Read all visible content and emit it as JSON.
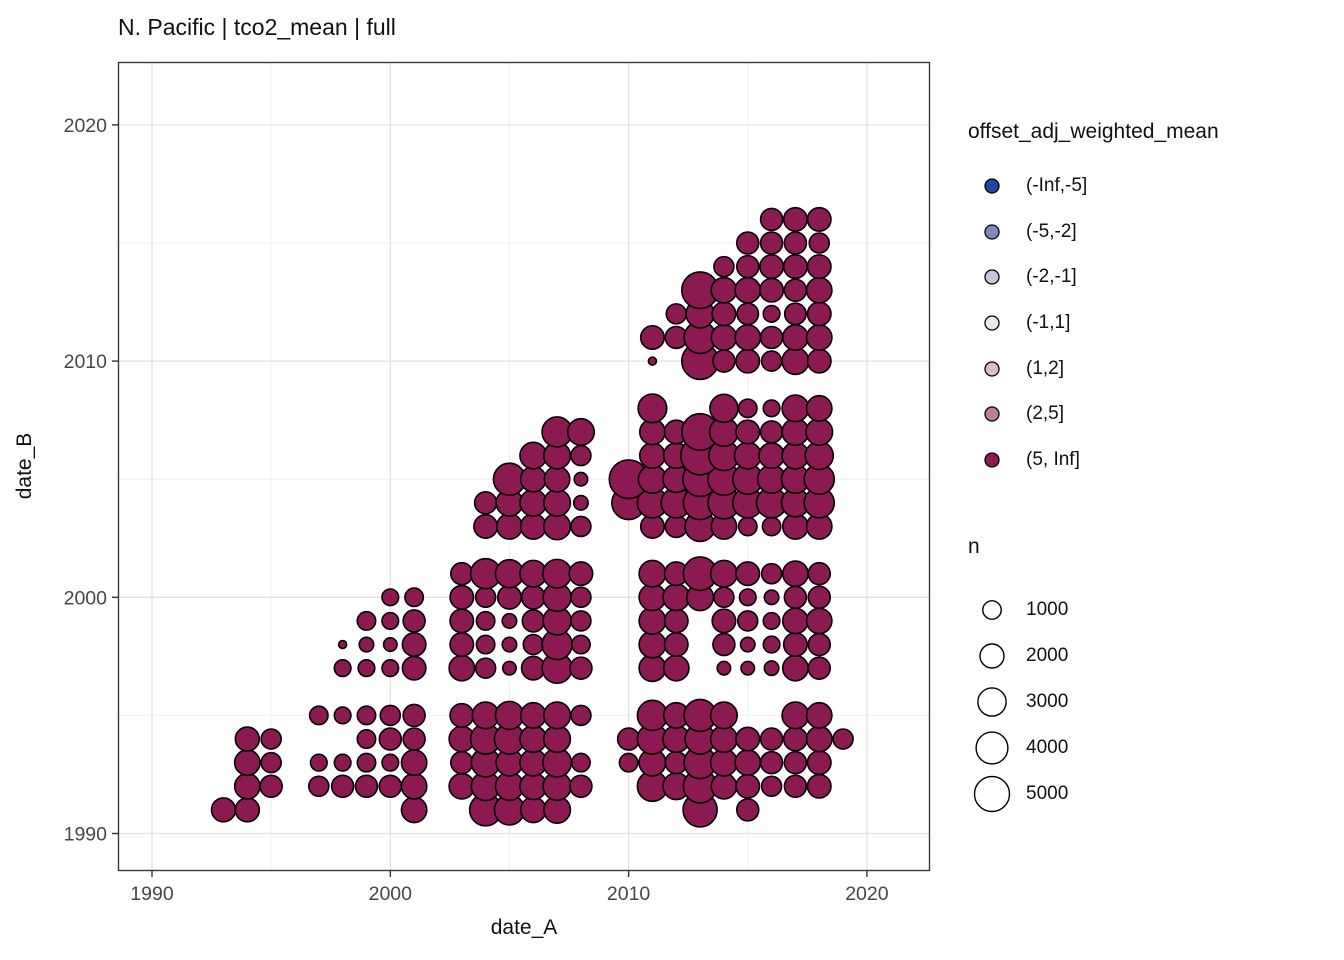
{
  "chart_data": {
    "type": "scatter",
    "title": "N. Pacific | tco2_mean | full",
    "xlabel": "date_A",
    "ylabel": "date_B",
    "x_ticks": [
      1990,
      2000,
      2010,
      2020
    ],
    "y_ticks": [
      1990,
      2000,
      2010,
      2020
    ],
    "x_minor_gridlines": [
      1995,
      2005,
      2015
    ],
    "y_minor_gridlines": [
      1995,
      2005,
      2015
    ],
    "xlim": [
      1988.5,
      2022.8
    ],
    "ylim": [
      1988.4,
      2022.9
    ],
    "grid": "major and minor, light gray on white, dark panel border",
    "point_style": {
      "fill_category": "(5, Inf]",
      "fill": "#8c1a52",
      "stroke": "#000000"
    },
    "color_legend": {
      "title": "offset_adj_weighted_mean",
      "entries": [
        {
          "label": "(-Inf,-5]",
          "color": "#1e4a9c"
        },
        {
          "label": "(-5,-2]",
          "color": "#8289c1"
        },
        {
          "label": "(-2,-1]",
          "color": "#c3c6de"
        },
        {
          "label": "(-1,1]",
          "color": "#edebf0"
        },
        {
          "label": "(1,2]",
          "color": "#dcbeca"
        },
        {
          "label": "(2,5]",
          "color": "#c07e95"
        },
        {
          "label": "(5, Inf]",
          "color": "#8c1a52"
        }
      ]
    },
    "size_legend": {
      "title": "n",
      "entries": [
        {
          "label": "1000",
          "n": 1000
        },
        {
          "label": "2000",
          "n": 2000
        },
        {
          "label": "3000",
          "n": 3000
        },
        {
          "label": "4000",
          "n": 4000
        },
        {
          "label": "5000",
          "n": 5000
        }
      ]
    },
    "points_format": [
      "date_A",
      "date_B",
      "n"
    ],
    "points": [
      [
        1993,
        1991,
        2000
      ],
      [
        1994,
        1991,
        2000
      ],
      [
        2001,
        1991,
        2300
      ],
      [
        2004,
        1991,
        4050
      ],
      [
        2005,
        1991,
        3500
      ],
      [
        2006,
        1991,
        2300
      ],
      [
        2007,
        1991,
        2600
      ],
      [
        2013,
        1991,
        4700
      ],
      [
        2015,
        1991,
        1600
      ],
      [
        1994,
        1992,
        2300
      ],
      [
        1995,
        1992,
        1600
      ],
      [
        1997,
        1992,
        1250
      ],
      [
        1998,
        1992,
        1600
      ],
      [
        1999,
        1992,
        1600
      ],
      [
        2000,
        1992,
        1600
      ],
      [
        2001,
        1992,
        2300
      ],
      [
        2003,
        1992,
        2300
      ],
      [
        2004,
        1992,
        3100
      ],
      [
        2005,
        1992,
        2950
      ],
      [
        2006,
        1992,
        2600
      ],
      [
        2007,
        1992,
        2950
      ],
      [
        2008,
        1992,
        1600
      ],
      [
        2011,
        1992,
        3500
      ],
      [
        2012,
        1992,
        2600
      ],
      [
        2013,
        1992,
        4500
      ],
      [
        2014,
        1992,
        2300
      ],
      [
        2015,
        1992,
        1900
      ],
      [
        2016,
        1992,
        1250
      ],
      [
        2017,
        1992,
        1600
      ],
      [
        2018,
        1992,
        1900
      ],
      [
        1994,
        1993,
        2300
      ],
      [
        1995,
        1993,
        1250
      ],
      [
        1997,
        1993,
        750
      ],
      [
        1998,
        1993,
        750
      ],
      [
        1999,
        1993,
        1000
      ],
      [
        2000,
        1993,
        750
      ],
      [
        2001,
        1993,
        2300
      ],
      [
        2003,
        1993,
        1600
      ],
      [
        2004,
        1993,
        3100
      ],
      [
        2005,
        1993,
        2600
      ],
      [
        2006,
        1993,
        2600
      ],
      [
        2007,
        1993,
        3100
      ],
      [
        2008,
        1993,
        1000
      ],
      [
        2010,
        1993,
        1000
      ],
      [
        2011,
        1993,
        2600
      ],
      [
        2012,
        1993,
        1600
      ],
      [
        2013,
        1993,
        4050
      ],
      [
        2014,
        1993,
        2600
      ],
      [
        2015,
        1993,
        2300
      ],
      [
        2016,
        1993,
        1600
      ],
      [
        2017,
        1993,
        1600
      ],
      [
        2018,
        1993,
        1900
      ],
      [
        1994,
        1994,
        2000
      ],
      [
        1995,
        1994,
        1250
      ],
      [
        1999,
        1994,
        1000
      ],
      [
        2000,
        1994,
        1600
      ],
      [
        2001,
        1994,
        1600
      ],
      [
        2003,
        1994,
        2300
      ],
      [
        2004,
        1994,
        3500
      ],
      [
        2005,
        1994,
        3500
      ],
      [
        2006,
        1994,
        2600
      ],
      [
        2007,
        1994,
        2600
      ],
      [
        2010,
        1994,
        1600
      ],
      [
        2011,
        1994,
        3500
      ],
      [
        2012,
        1994,
        2600
      ],
      [
        2013,
        1994,
        3500
      ],
      [
        2014,
        1994,
        2600
      ],
      [
        2015,
        1994,
        1900
      ],
      [
        2016,
        1994,
        1600
      ],
      [
        2017,
        1994,
        1900
      ],
      [
        2018,
        1994,
        2300
      ],
      [
        2019,
        1994,
        1250
      ],
      [
        1997,
        1995,
        1000
      ],
      [
        1998,
        1995,
        750
      ],
      [
        1999,
        1995,
        1000
      ],
      [
        2000,
        1995,
        1250
      ],
      [
        2001,
        1995,
        1600
      ],
      [
        2003,
        1995,
        1900
      ],
      [
        2004,
        1995,
        2600
      ],
      [
        2005,
        1995,
        2950
      ],
      [
        2006,
        1995,
        2300
      ],
      [
        2007,
        1995,
        2600
      ],
      [
        2008,
        1995,
        1250
      ],
      [
        2011,
        1995,
        3500
      ],
      [
        2012,
        1995,
        2300
      ],
      [
        2013,
        1995,
        4050
      ],
      [
        2014,
        1995,
        2600
      ],
      [
        2017,
        1995,
        2600
      ],
      [
        2018,
        1995,
        2300
      ],
      [
        1998,
        1997,
        750
      ],
      [
        1999,
        1997,
        750
      ],
      [
        2000,
        1997,
        750
      ],
      [
        2001,
        1997,
        1900
      ],
      [
        2003,
        1997,
        2300
      ],
      [
        2004,
        1997,
        1250
      ],
      [
        2005,
        1997,
        400
      ],
      [
        2006,
        1997,
        1900
      ],
      [
        2007,
        1997,
        3500
      ],
      [
        2008,
        1997,
        1600
      ],
      [
        2011,
        1997,
        2600
      ],
      [
        2012,
        1997,
        2300
      ],
      [
        2014,
        1997,
        400
      ],
      [
        2015,
        1997,
        400
      ],
      [
        2016,
        1997,
        500
      ],
      [
        2017,
        1997,
        2300
      ],
      [
        2018,
        1997,
        1600
      ],
      [
        1998,
        1998,
        50
      ],
      [
        1999,
        1998,
        500
      ],
      [
        2000,
        1998,
        400
      ],
      [
        2001,
        1998,
        1900
      ],
      [
        2003,
        1998,
        1900
      ],
      [
        2004,
        1998,
        1000
      ],
      [
        2005,
        1998,
        500
      ],
      [
        2006,
        1998,
        1250
      ],
      [
        2007,
        1998,
        3500
      ],
      [
        2008,
        1998,
        1000
      ],
      [
        2011,
        1998,
        2600
      ],
      [
        2012,
        1998,
        1900
      ],
      [
        2014,
        1998,
        1600
      ],
      [
        2015,
        1998,
        500
      ],
      [
        2016,
        1998,
        750
      ],
      [
        2017,
        1998,
        1900
      ],
      [
        2018,
        1998,
        1600
      ],
      [
        1999,
        1999,
        1000
      ],
      [
        2000,
        1999,
        750
      ],
      [
        2001,
        1999,
        1600
      ],
      [
        2003,
        1999,
        1900
      ],
      [
        2004,
        1999,
        1000
      ],
      [
        2005,
        1999,
        500
      ],
      [
        2006,
        1999,
        1600
      ],
      [
        2007,
        1999,
        2950
      ],
      [
        2008,
        1999,
        1250
      ],
      [
        2011,
        1999,
        2600
      ],
      [
        2012,
        1999,
        1900
      ],
      [
        2014,
        1999,
        1900
      ],
      [
        2015,
        1999,
        1250
      ],
      [
        2016,
        1999,
        750
      ],
      [
        2017,
        1999,
        2300
      ],
      [
        2018,
        1999,
        2300
      ],
      [
        2000,
        2000,
        750
      ],
      [
        2001,
        2000,
        1000
      ],
      [
        2003,
        2000,
        1900
      ],
      [
        2004,
        2000,
        1250
      ],
      [
        2005,
        2000,
        1900
      ],
      [
        2006,
        2000,
        1900
      ],
      [
        2007,
        2000,
        2950
      ],
      [
        2008,
        2000,
        1250
      ],
      [
        2011,
        2000,
        2600
      ],
      [
        2012,
        2000,
        2600
      ],
      [
        2013,
        2000,
        2600
      ],
      [
        2014,
        2000,
        1250
      ],
      [
        2015,
        2000,
        750
      ],
      [
        2016,
        2000,
        500
      ],
      [
        2017,
        2000,
        1600
      ],
      [
        2018,
        2000,
        1600
      ],
      [
        2003,
        2001,
        1600
      ],
      [
        2004,
        2001,
        3500
      ],
      [
        2005,
        2001,
        2950
      ],
      [
        2006,
        2001,
        2600
      ],
      [
        2007,
        2001,
        3100
      ],
      [
        2008,
        2001,
        1900
      ],
      [
        2011,
        2001,
        2600
      ],
      [
        2012,
        2001,
        1900
      ],
      [
        2013,
        2001,
        4500
      ],
      [
        2014,
        2001,
        2600
      ],
      [
        2015,
        2001,
        1900
      ],
      [
        2016,
        2001,
        1250
      ],
      [
        2017,
        2001,
        2300
      ],
      [
        2018,
        2001,
        1600
      ],
      [
        2004,
        2003,
        1900
      ],
      [
        2005,
        2003,
        2300
      ],
      [
        2006,
        2003,
        2300
      ],
      [
        2007,
        2003,
        2600
      ],
      [
        2008,
        2003,
        1250
      ],
      [
        2011,
        2003,
        1900
      ],
      [
        2012,
        2003,
        1600
      ],
      [
        2013,
        2003,
        3500
      ],
      [
        2014,
        2003,
        2300
      ],
      [
        2015,
        2003,
        1000
      ],
      [
        2016,
        2003,
        1000
      ],
      [
        2017,
        2003,
        2300
      ],
      [
        2018,
        2003,
        2300
      ],
      [
        2004,
        2004,
        1600
      ],
      [
        2005,
        2004,
        2600
      ],
      [
        2006,
        2004,
        2600
      ],
      [
        2007,
        2004,
        2600
      ],
      [
        2008,
        2004,
        500
      ],
      [
        2010,
        2004,
        4500
      ],
      [
        2011,
        2004,
        3500
      ],
      [
        2012,
        2004,
        3500
      ],
      [
        2013,
        2004,
        4500
      ],
      [
        2014,
        2004,
        4050
      ],
      [
        2015,
        2004,
        3500
      ],
      [
        2016,
        2004,
        3500
      ],
      [
        2017,
        2004,
        2950
      ],
      [
        2018,
        2004,
        3500
      ],
      [
        2005,
        2005,
        4050
      ],
      [
        2006,
        2005,
        2300
      ],
      [
        2007,
        2005,
        2300
      ],
      [
        2008,
        2005,
        400
      ],
      [
        2010,
        2005,
        6300
      ],
      [
        2011,
        2005,
        2950
      ],
      [
        2012,
        2005,
        2600
      ],
      [
        2013,
        2005,
        4850
      ],
      [
        2014,
        2005,
        4050
      ],
      [
        2015,
        2005,
        3500
      ],
      [
        2016,
        2005,
        2950
      ],
      [
        2017,
        2005,
        2950
      ],
      [
        2018,
        2005,
        3500
      ],
      [
        2006,
        2006,
        2600
      ],
      [
        2007,
        2006,
        2600
      ],
      [
        2008,
        2006,
        1250
      ],
      [
        2011,
        2006,
        2300
      ],
      [
        2012,
        2006,
        2300
      ],
      [
        2013,
        2006,
        6300
      ],
      [
        2014,
        2006,
        3500
      ],
      [
        2015,
        2006,
        2600
      ],
      [
        2016,
        2006,
        2300
      ],
      [
        2017,
        2006,
        2600
      ],
      [
        2018,
        2006,
        2950
      ],
      [
        2007,
        2007,
        3500
      ],
      [
        2008,
        2007,
        2600
      ],
      [
        2011,
        2007,
        2300
      ],
      [
        2012,
        2007,
        1900
      ],
      [
        2013,
        2007,
        5550
      ],
      [
        2014,
        2007,
        3100
      ],
      [
        2015,
        2007,
        1900
      ],
      [
        2016,
        2007,
        1600
      ],
      [
        2017,
        2007,
        2600
      ],
      [
        2018,
        2007,
        2600
      ],
      [
        2011,
        2008,
        3100
      ],
      [
        2014,
        2008,
        2950
      ],
      [
        2015,
        2008,
        1000
      ],
      [
        2016,
        2008,
        750
      ],
      [
        2017,
        2008,
        2600
      ],
      [
        2018,
        2008,
        2300
      ],
      [
        2011,
        2010,
        50
      ],
      [
        2013,
        2010,
        5550
      ],
      [
        2014,
        2010,
        1600
      ],
      [
        2015,
        2010,
        1900
      ],
      [
        2016,
        2010,
        1250
      ],
      [
        2017,
        2010,
        2600
      ],
      [
        2018,
        2010,
        1900
      ],
      [
        2011,
        2011,
        1900
      ],
      [
        2012,
        2011,
        1600
      ],
      [
        2013,
        2011,
        4050
      ],
      [
        2014,
        2011,
        2300
      ],
      [
        2015,
        2011,
        2300
      ],
      [
        2016,
        2011,
        1600
      ],
      [
        2017,
        2011,
        2300
      ],
      [
        2018,
        2011,
        2300
      ],
      [
        2012,
        2012,
        1250
      ],
      [
        2013,
        2012,
        2950
      ],
      [
        2014,
        2012,
        1900
      ],
      [
        2015,
        2012,
        1500
      ],
      [
        2016,
        2012,
        750
      ],
      [
        2017,
        2012,
        1500
      ],
      [
        2018,
        2012,
        1900
      ],
      [
        2013,
        2013,
        5550
      ],
      [
        2014,
        2013,
        2300
      ],
      [
        2015,
        2013,
        2300
      ],
      [
        2016,
        2013,
        1900
      ],
      [
        2017,
        2013,
        1600
      ],
      [
        2018,
        2013,
        2300
      ],
      [
        2014,
        2014,
        1250
      ],
      [
        2015,
        2014,
        1600
      ],
      [
        2016,
        2014,
        1900
      ],
      [
        2017,
        2014,
        1900
      ],
      [
        2018,
        2014,
        1900
      ],
      [
        2015,
        2015,
        1600
      ],
      [
        2016,
        2015,
        1600
      ],
      [
        2017,
        2015,
        1600
      ],
      [
        2018,
        2015,
        1250
      ],
      [
        2016,
        2016,
        1600
      ],
      [
        2017,
        2016,
        1900
      ],
      [
        2018,
        2016,
        1900
      ]
    ]
  }
}
